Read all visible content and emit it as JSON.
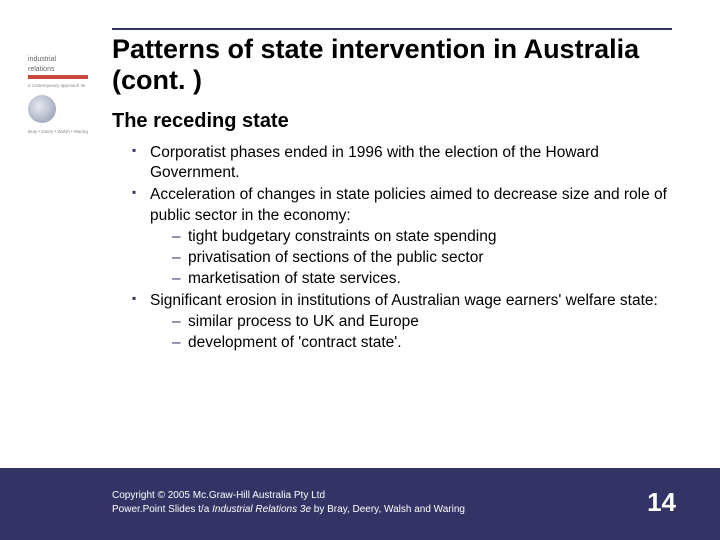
{
  "slide": {
    "title": "Patterns of state intervention in Australia (cont. )",
    "subtitle": "The receding state",
    "bullets": [
      {
        "text": "Corporatist phases ended in 1996 with the election of the Howard Government.",
        "sub": []
      },
      {
        "text": "Acceleration of changes in state policies aimed to decrease size and role of public sector in the economy:",
        "sub": [
          "tight budgetary constraints on state spending",
          "privatisation of sections of the public sector",
          "marketisation of state services."
        ]
      },
      {
        "text": "Significant erosion in institutions of Australian wage earners' welfare state:",
        "sub": [
          "similar process to UK and Europe",
          "development of 'contract state'."
        ]
      }
    ],
    "copyright_line1": "Copyright © 2005 Mc.Graw-Hill Australia Pty Ltd",
    "copyright_line2_a": "Power.Point Slides t/a ",
    "copyright_line2_em": "Industrial Relations 3e",
    "copyright_line2_b": " by Bray, Deery, Walsh and Waring",
    "page_number": "14",
    "thumb": {
      "brand_top": "industrial",
      "brand_bottom": "relations",
      "micro": "a contemporary approach 3e"
    },
    "colors": {
      "footer_bg": "#333366",
      "bullet_color": "#333366",
      "thumb_bar": "#c94a3b"
    }
  }
}
